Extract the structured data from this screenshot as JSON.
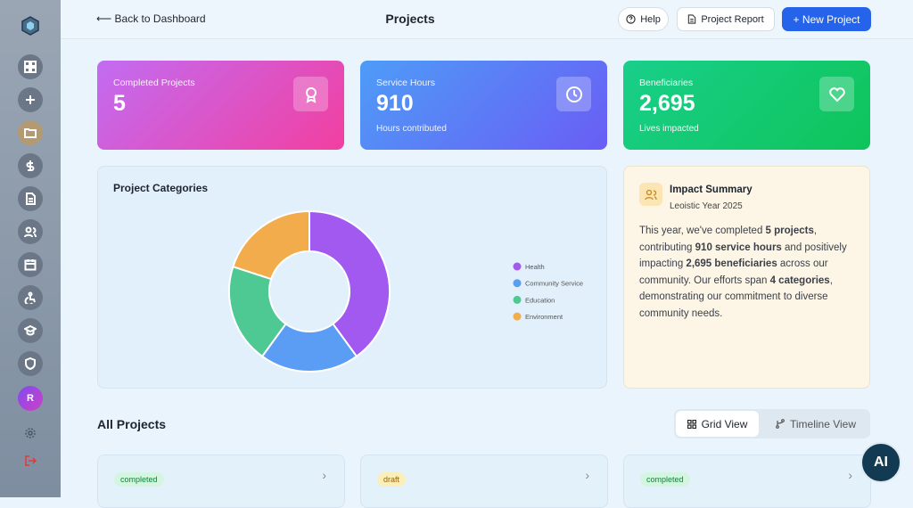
{
  "header": {
    "back": "Back to Dashboard",
    "title": "Projects",
    "help": "Help",
    "report": "Project Report",
    "new_project": "+ New Project"
  },
  "stats": [
    {
      "label": "Completed Projects",
      "value": "5"
    },
    {
      "label": "Service Hours",
      "value": "910",
      "sub": "Hours contributed"
    },
    {
      "label": "Beneficiaries",
      "value": "2,695",
      "sub": "Lives impacted"
    }
  ],
  "chart_data": {
    "type": "donut",
    "title": "Project Categories",
    "categories": [
      "Health",
      "Community Service",
      "Education",
      "Environment"
    ],
    "values": [
      2,
      1,
      1,
      1
    ],
    "colors": [
      "#a259f0",
      "#5b9cf5",
      "#4ec994",
      "#f2ac4c"
    ]
  },
  "impact": {
    "title": "Impact Summary",
    "subtitle": "Leoistic Year 2025",
    "paragraph": [
      "This year, we've completed ",
      "5 projects",
      ", contributing ",
      "910 service hours",
      " and positively impacting ",
      "2,695 beneficiaries",
      " across our community. Our efforts span ",
      "4 categories",
      ", demonstrating our commitment to diverse community needs."
    ]
  },
  "projects": {
    "title": "All Projects",
    "views": [
      "Grid View",
      "Timeline View"
    ],
    "cards": [
      {
        "status": "completed"
      },
      {
        "status": "draft"
      },
      {
        "status": "completed"
      }
    ]
  },
  "sidebar": {
    "avatar": "R"
  },
  "ai_button": "AI"
}
